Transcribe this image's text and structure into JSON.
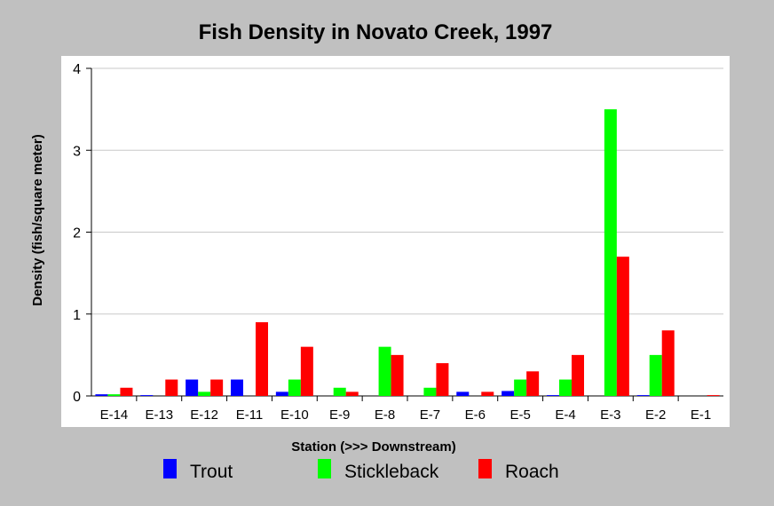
{
  "chart_data": {
    "type": "bar",
    "title": "Fish Density in Novato Creek, 1997",
    "xlabel": "Station (>>> Downstream)",
    "ylabel": "Density (fish/square meter)",
    "ylim": [
      0,
      4
    ],
    "yticks": [
      0,
      1,
      2,
      3,
      4
    ],
    "grid": true,
    "legend_position": "bottom",
    "categories": [
      "E-14",
      "E-13",
      "E-12",
      "E-11",
      "E-10",
      "E-9",
      "E-8",
      "E-7",
      "E-6",
      "E-5",
      "E-4",
      "E-3",
      "E-2",
      "E-1"
    ],
    "series": [
      {
        "name": "Trout",
        "color": "#0000ff",
        "values": [
          0.02,
          0.01,
          0.2,
          0.2,
          0.05,
          0.0,
          0.0,
          0.0,
          0.05,
          0.06,
          0.01,
          0.0,
          0.01,
          0.0
        ]
      },
      {
        "name": "Stickleback",
        "color": "#00ff00",
        "values": [
          0.02,
          0.0,
          0.05,
          0.0,
          0.2,
          0.1,
          0.6,
          0.1,
          0.0,
          0.2,
          0.2,
          3.5,
          0.5,
          0.0
        ]
      },
      {
        "name": "Roach",
        "color": "#ff0000",
        "values": [
          0.1,
          0.2,
          0.2,
          0.9,
          0.6,
          0.05,
          0.5,
          0.4,
          0.05,
          0.3,
          0.5,
          1.7,
          0.8,
          0.01
        ]
      }
    ]
  }
}
